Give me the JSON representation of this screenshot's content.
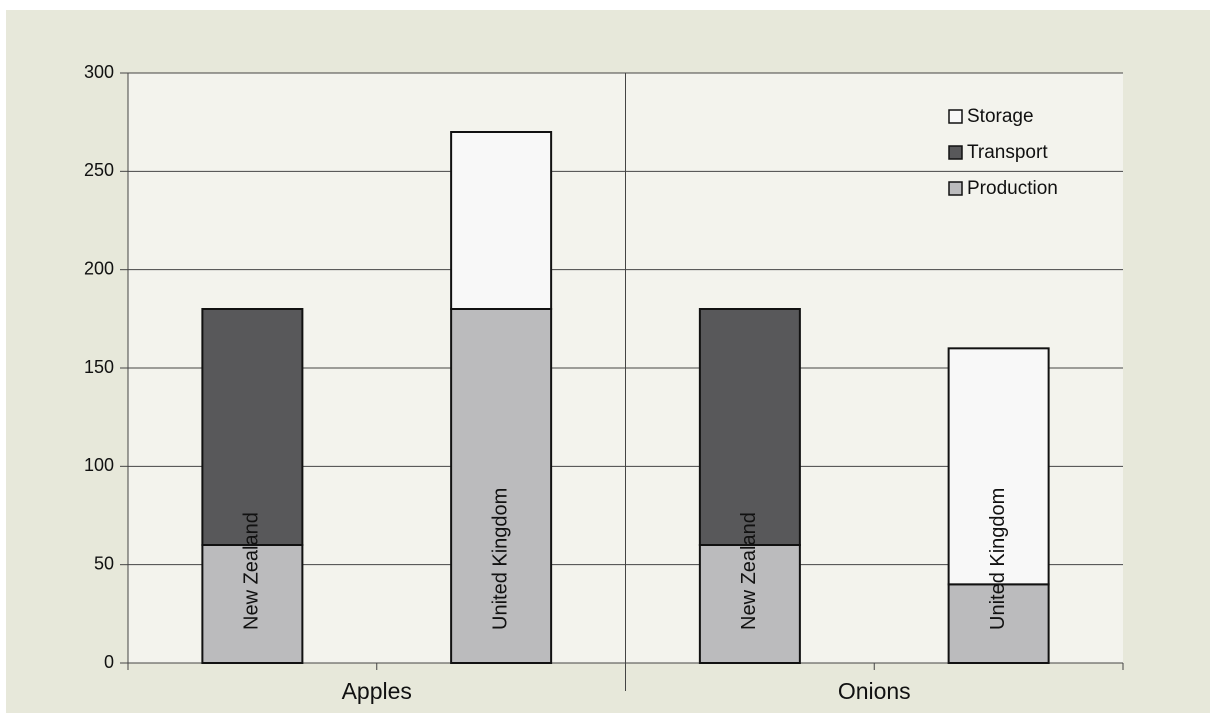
{
  "chart_data": {
    "type": "stacked_bar",
    "groups": [
      "Apples",
      "Onions"
    ],
    "categories": [
      "New Zealand",
      "United Kingdom",
      "New Zealand",
      "United Kingdom"
    ],
    "series": [
      {
        "name": "Production",
        "color": "#bbbbbd",
        "values": [
          60,
          180,
          60,
          40
        ]
      },
      {
        "name": "Transport",
        "color": "#58585a",
        "values": [
          120,
          0,
          120,
          0
        ]
      },
      {
        "name": "Storage",
        "color": "#f8f8f8",
        "values": [
          0,
          90,
          0,
          120
        ]
      }
    ],
    "ylim": [
      0,
      300
    ],
    "yticks": [
      0,
      50,
      100,
      150,
      200,
      250,
      300
    ],
    "grid": true,
    "legend": "upper right"
  }
}
